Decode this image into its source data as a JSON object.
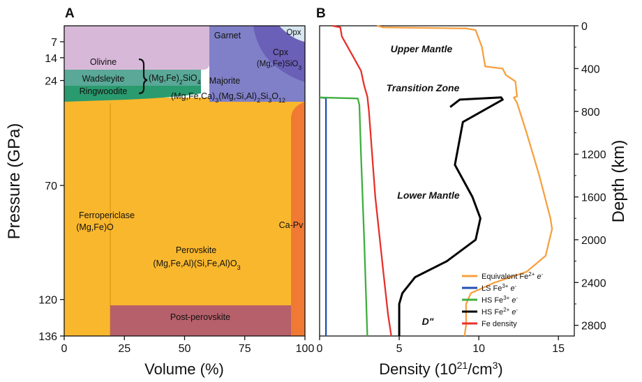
{
  "chart_data": [
    {
      "panel": "A",
      "type": "area",
      "xlabel": "Volume (%)",
      "ylabel": "Pressure (GPa)",
      "xlim": [
        0,
        100
      ],
      "ylim": [
        136,
        0
      ],
      "x_ticks": [
        "0",
        "25",
        "50",
        "75",
        "100"
      ],
      "y_ticks": [
        "7",
        "14",
        "24",
        "70",
        "120",
        "136"
      ],
      "regions": [
        {
          "key": "olivine",
          "label": "Olivine",
          "color": "#d8b8d8",
          "pressure_range": [
            0,
            14
          ],
          "volume_range": [
            0,
            60
          ]
        },
        {
          "key": "wadsleyite",
          "label": "Wadsleyite",
          "color": "#5aa897",
          "pressure_range": [
            14,
            19
          ],
          "volume_range": [
            0,
            57
          ]
        },
        {
          "key": "ringwoodite",
          "label": "Ringwoodite",
          "color": "#2a9b6e",
          "pressure_range": [
            19,
            24
          ],
          "volume_range": [
            0,
            57
          ]
        },
        {
          "key": "garnet",
          "label": "Garnet",
          "color": "#8080c8",
          "pressure_range": [
            0,
            24
          ],
          "volume_range": [
            60,
            100
          ]
        },
        {
          "key": "cpx",
          "label": "Cpx",
          "formula": "(Mg,Fe)SiO3",
          "color": "#6a60b8",
          "pressure_range": [
            0,
            20
          ],
          "volume_range": [
            83,
            100
          ]
        },
        {
          "key": "opx",
          "label": "Opx",
          "color": "#d8e6f0",
          "pressure_range": [
            0,
            3
          ],
          "volume_range": [
            94,
            100
          ]
        },
        {
          "key": "ferropericlase",
          "label": "Ferropericlase",
          "formula": "(Mg,Fe)O",
          "color": "#f9b72d",
          "pressure_range": [
            24,
            136
          ],
          "volume_range": [
            0,
            20
          ]
        },
        {
          "key": "perovskite",
          "label": "Perovskite",
          "formula": "(Mg,Fe,Al)(Si,Fe,Al)O3",
          "color": "#f9b72d",
          "pressure_range": [
            24,
            120
          ],
          "volume_range": [
            20,
            95
          ]
        },
        {
          "key": "ca_pv",
          "label": "Ca-Pv",
          "color": "#f07a34",
          "pressure_range": [
            30,
            136
          ],
          "volume_range": [
            95,
            100
          ]
        },
        {
          "key": "post_perovskite",
          "label": "Post-perovskite",
          "color": "#b5606a",
          "pressure_range": [
            120,
            136
          ],
          "volume_range": [
            20,
            95
          ]
        }
      ],
      "annotations": {
        "upper_mantle_formula": "(Mg,Fe)2SiO4",
        "majorite": "Majorite",
        "majorite_formula": "(Mg,Fe,Ca)3(Mg,Si,Al)2Si3O12"
      }
    },
    {
      "panel": "B",
      "type": "line",
      "xlabel": "Density (10²¹/cm³)",
      "ylabel": "Depth (km)",
      "xlim": [
        0,
        16
      ],
      "ylim": [
        2900,
        0
      ],
      "x_ticks": [
        "0",
        "5",
        "10",
        "15"
      ],
      "y_ticks": [
        "0",
        "400",
        "800",
        "1200",
        "1600",
        "2000",
        "2400",
        "2800"
      ],
      "region_labels": [
        "Upper Mantle",
        "Transition Zone",
        "Lower Mantle",
        "D\""
      ],
      "legend_position": "bottom-right",
      "series": [
        {
          "key": "equiv",
          "name": "Equivalent Fe²⁺ e⁻",
          "color": "#f7a040",
          "points": [
            [
              3.6,
              0
            ],
            [
              4.0,
              15
            ],
            [
              9.2,
              25
            ],
            [
              9.8,
              40
            ],
            [
              10.2,
              200
            ],
            [
              10.4,
              380
            ],
            [
              11.5,
              400
            ],
            [
              11.7,
              460
            ],
            [
              12.3,
              520
            ],
            [
              12.4,
              660
            ],
            [
              12.2,
              670
            ],
            [
              12.4,
              720
            ],
            [
              13.0,
              1000
            ],
            [
              13.8,
              1400
            ],
            [
              14.5,
              1800
            ],
            [
              14.6,
              1900
            ],
            [
              14.2,
              2150
            ],
            [
              13.0,
              2300
            ],
            [
              11.0,
              2400
            ],
            [
              9.5,
              2500
            ],
            [
              9.2,
              2600
            ],
            [
              9.2,
              2800
            ],
            [
              9.1,
              2900
            ]
          ]
        },
        {
          "key": "ls3",
          "name": "LS Fe³⁺ e⁻",
          "color": "#1f4fb5",
          "points": [
            [
              0.0,
              670
            ],
            [
              0.4,
              675
            ],
            [
              0.4,
              2900
            ]
          ]
        },
        {
          "key": "hs3",
          "name": "HS Fe³⁺ e⁻",
          "color": "#3fae3f",
          "points": [
            [
              0.0,
              670
            ],
            [
              2.4,
              680
            ],
            [
              2.5,
              740
            ],
            [
              2.6,
              1200
            ],
            [
              2.8,
              2000
            ],
            [
              3.0,
              2900
            ]
          ]
        },
        {
          "key": "hs2",
          "name": "HS Fe²⁺ e⁻",
          "color": "#000000",
          "points": [
            [
              8.2,
              760
            ],
            [
              8.8,
              690
            ],
            [
              11.4,
              670
            ],
            [
              11.5,
              690
            ],
            [
              9.0,
              900
            ],
            [
              8.5,
              1300
            ],
            [
              9.6,
              1600
            ],
            [
              10.1,
              1800
            ],
            [
              9.8,
              2000
            ],
            [
              8.0,
              2200
            ],
            [
              6.0,
              2350
            ],
            [
              5.2,
              2500
            ],
            [
              5.0,
              2600
            ],
            [
              5.0,
              2900
            ]
          ]
        },
        {
          "key": "fe",
          "name": "Fe density",
          "color": "#e8302a",
          "points": [
            [
              0.8,
              0
            ],
            [
              1.3,
              15
            ],
            [
              1.4,
              100
            ],
            [
              2.6,
              420
            ],
            [
              2.8,
              560
            ],
            [
              3.0,
              660
            ],
            [
              3.1,
              800
            ],
            [
              3.5,
              1600
            ],
            [
              4.0,
              2300
            ],
            [
              4.3,
              2700
            ],
            [
              4.5,
              2900
            ]
          ]
        }
      ]
    }
  ],
  "labels": {
    "panel_a": "A",
    "panel_b": "B",
    "a_xlabel": "Volume (%)",
    "a_ylabel": "Pressure (GPa)",
    "b_ylabel": "Depth (km)",
    "b_xlabel_pre": "Density (10",
    "b_xlabel_sup": "21",
    "b_xlabel_mid": "/cm",
    "b_xlabel_sup2": "3",
    "b_xlabel_post": ")",
    "olivine": "Olivine",
    "wadsleyite": "Wadsleyite",
    "ringwoodite": "Ringwoodite",
    "garnet": "Garnet",
    "opx": "Opx",
    "cpx": "Cpx",
    "majorite": "Majorite",
    "ferropericlase": "Ferropericlase",
    "ferropericlase_formula": "(Mg,Fe)O",
    "perovskite": "Perovskite",
    "capv": "Ca-Pv",
    "postpv": "Post-perovskite",
    "upper_mantle": "Upper Mantle",
    "transition_zone": "Transition Zone",
    "lower_mantle": "Lower Mantle",
    "dpp": "D\""
  }
}
